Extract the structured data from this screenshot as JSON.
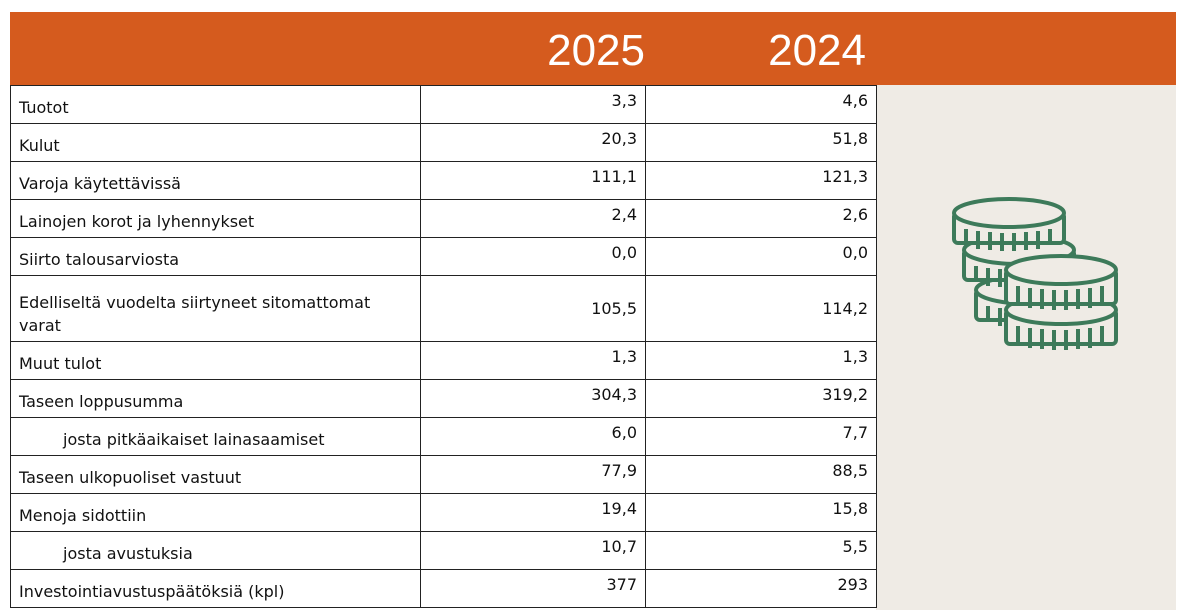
{
  "table": {
    "columns": [
      "2025",
      "2024"
    ],
    "rows": [
      [
        "Tuotot",
        "3,3",
        "4,6"
      ],
      [
        "Kulut",
        "20,3",
        "51,8"
      ],
      [
        "Varoja käytettävissä",
        "111,1",
        "121,3"
      ],
      [
        "Lainojen korot ja lyhennykset",
        "2,4",
        "2,6"
      ],
      [
        "Siirto talousarviosta",
        "0,0",
        "0,0"
      ],
      [
        "Edelliseltä vuodelta siirtyneet sitomattomat varat",
        "105,5",
        "114,2"
      ],
      [
        "Muut tulot",
        "1,3",
        "1,3"
      ],
      [
        "Taseen loppusumma",
        "304,3",
        "319,2"
      ],
      [
        "josta pitkäaikaiset lainasaamiset",
        "6,0",
        "7,7"
      ],
      [
        "Taseen ulkopuoliset vastuut",
        "77,9",
        "88,5"
      ],
      [
        "Menoja sidottiin",
        "19,4",
        "15,8"
      ],
      [
        "josta avustuksia",
        "10,7",
        "5,5"
      ],
      [
        "Investointiavustuspäätöksiä (kpl)",
        "377",
        "293"
      ]
    ]
  }
}
